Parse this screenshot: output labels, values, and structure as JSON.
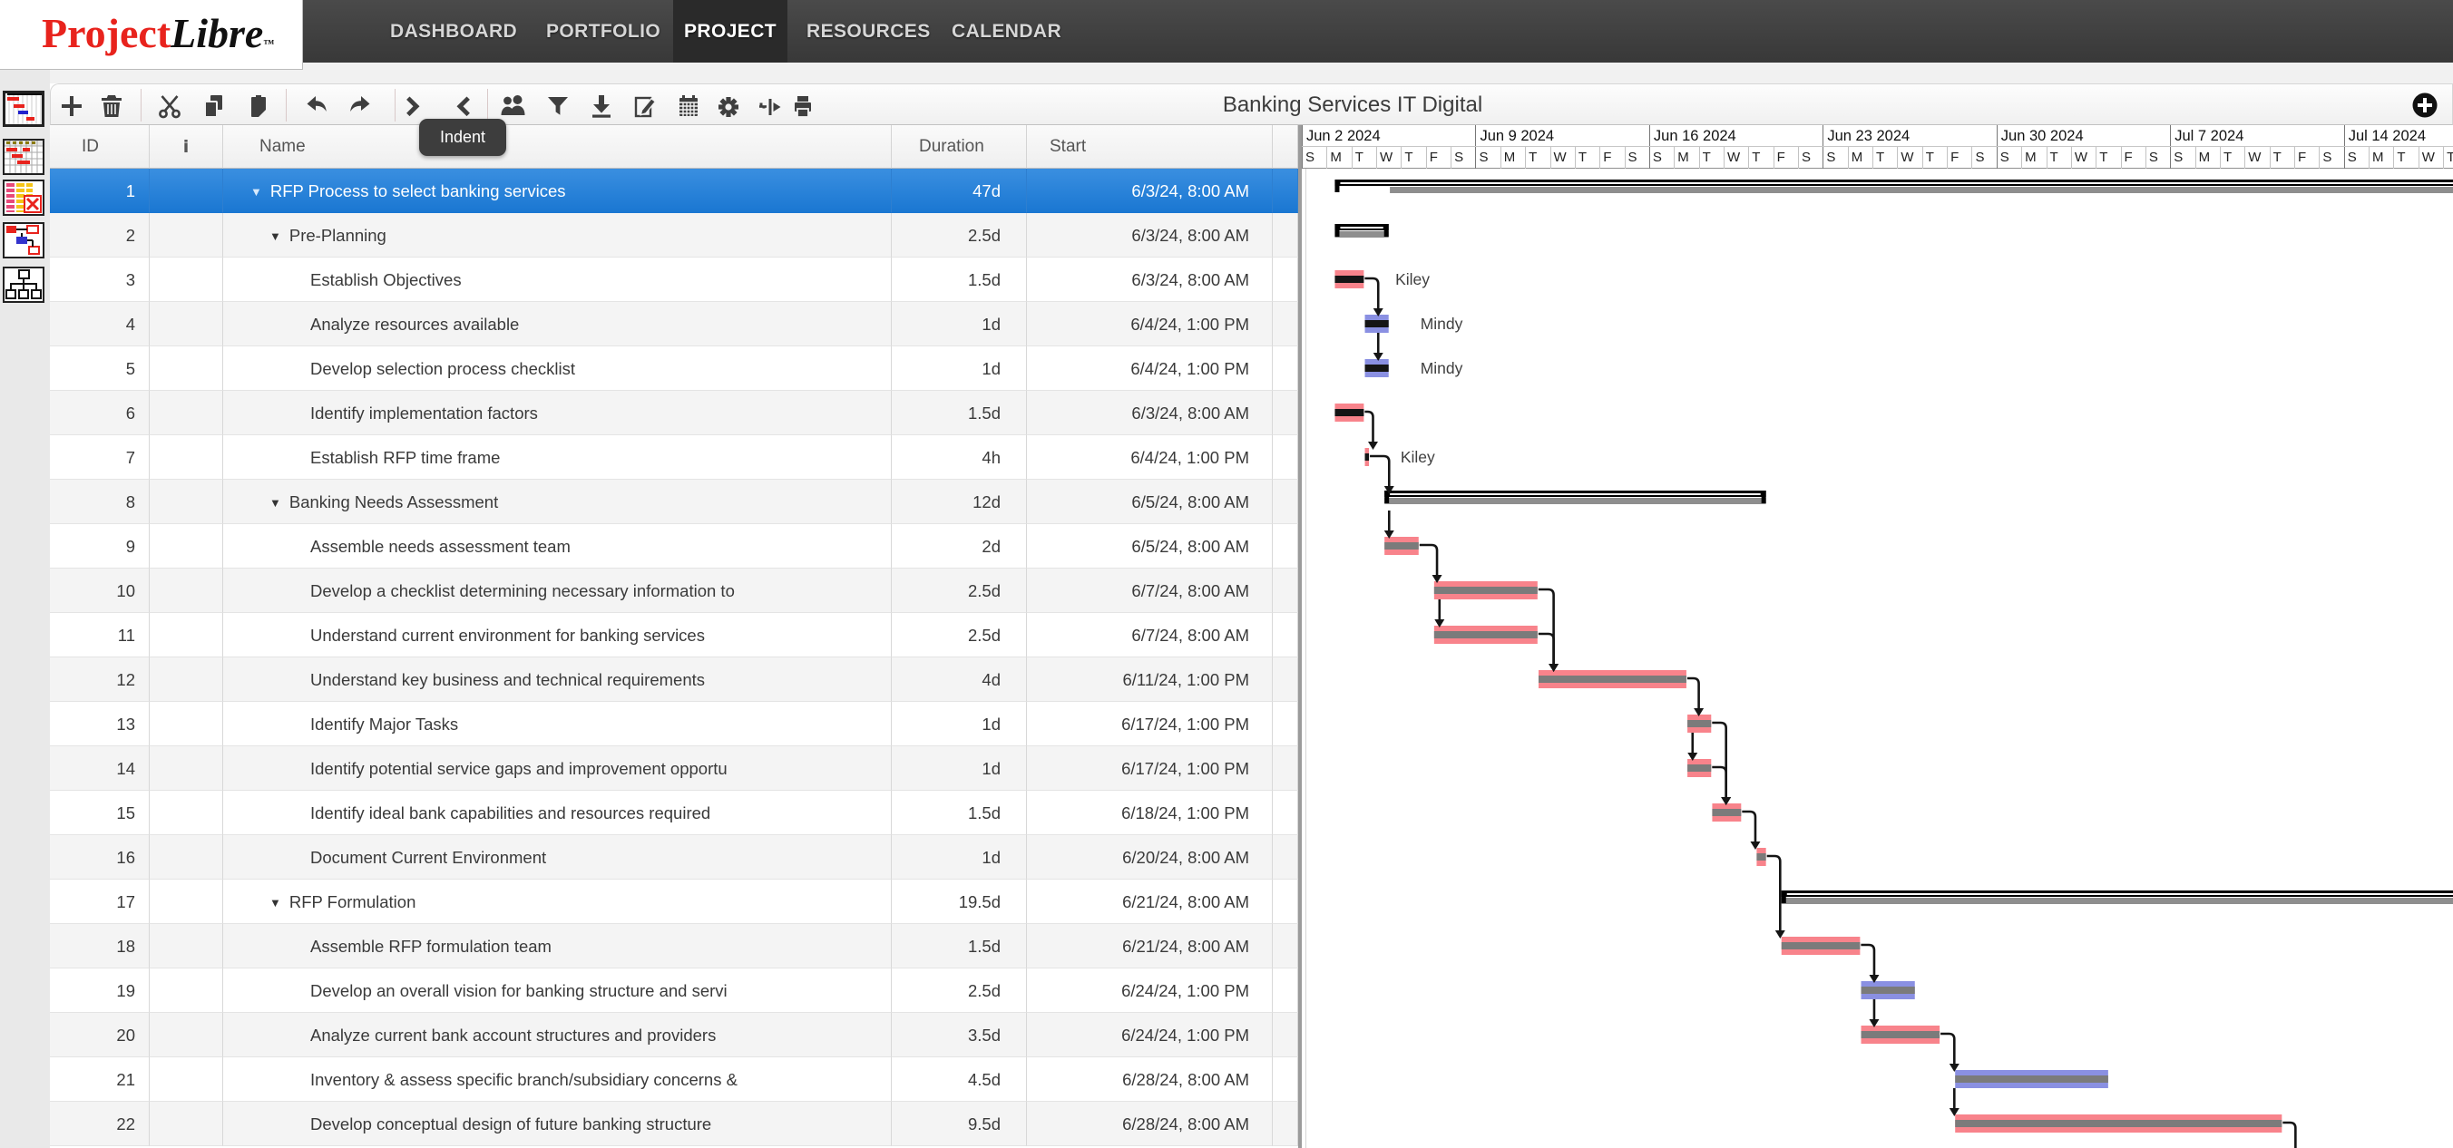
{
  "app": {
    "logo": {
      "part1": "Project",
      "part2": "Libre",
      "tm": "TM"
    }
  },
  "menu": {
    "items": [
      {
        "label": "DASHBOARD",
        "active": false
      },
      {
        "label": "PORTFOLIO",
        "active": false
      },
      {
        "label": "PROJECT",
        "active": true
      },
      {
        "label": "RESOURCES",
        "active": false
      },
      {
        "label": "CALENDAR",
        "active": false
      }
    ]
  },
  "toolbar": {
    "title": "Banking Services IT Digital",
    "tooltip": "Indent",
    "icons": [
      "add-task",
      "delete",
      "cut",
      "copy",
      "paste",
      "undo",
      "redo",
      "indent",
      "outdent",
      "assign-resources",
      "filter",
      "save-baseline",
      "edit",
      "calendar",
      "settings",
      "zoom",
      "print"
    ],
    "right_icon": "add-circle"
  },
  "sidebar": {
    "views": [
      "gantt",
      "tracking-gantt",
      "task-usage",
      "network-diagram",
      "wbs"
    ]
  },
  "table": {
    "columns": [
      {
        "key": "id",
        "label": "ID"
      },
      {
        "key": "info",
        "label": "i"
      },
      {
        "key": "name",
        "label": "Name"
      },
      {
        "key": "duration",
        "label": "Duration"
      },
      {
        "key": "start",
        "label": "Start"
      },
      {
        "key": "stub",
        "label": ""
      }
    ],
    "rows": [
      {
        "id": 1,
        "level": 1,
        "caret": true,
        "selected": true,
        "name": "RFP Process to select banking services",
        "duration": "47d",
        "start": "6/3/24, 8:00 AM"
      },
      {
        "id": 2,
        "level": 2,
        "caret": true,
        "selected": false,
        "name": "Pre-Planning",
        "duration": "2.5d",
        "start": "6/3/24, 8:00 AM"
      },
      {
        "id": 3,
        "level": 3,
        "caret": false,
        "selected": false,
        "name": "Establish Objectives",
        "duration": "1.5d",
        "start": "6/3/24, 8:00 AM"
      },
      {
        "id": 4,
        "level": 3,
        "caret": false,
        "selected": false,
        "name": "Analyze resources available",
        "duration": "1d",
        "start": "6/4/24, 1:00 PM"
      },
      {
        "id": 5,
        "level": 3,
        "caret": false,
        "selected": false,
        "name": "Develop selection process checklist",
        "duration": "1d",
        "start": "6/4/24, 1:00 PM"
      },
      {
        "id": 6,
        "level": 3,
        "caret": false,
        "selected": false,
        "name": "Identify implementation factors",
        "duration": "1.5d",
        "start": "6/3/24, 8:00 AM"
      },
      {
        "id": 7,
        "level": 3,
        "caret": false,
        "selected": false,
        "name": "Establish RFP time frame",
        "duration": "4h",
        "start": "6/4/24, 1:00 PM"
      },
      {
        "id": 8,
        "level": 2,
        "caret": true,
        "selected": false,
        "name": "Banking Needs Assessment",
        "duration": "12d",
        "start": "6/5/24, 8:00 AM"
      },
      {
        "id": 9,
        "level": 3,
        "caret": false,
        "selected": false,
        "name": "Assemble needs assessment team",
        "duration": "2d",
        "start": "6/5/24, 8:00 AM"
      },
      {
        "id": 10,
        "level": 3,
        "caret": false,
        "selected": false,
        "name": "Develop a checklist determining necessary information to",
        "duration": "2.5d",
        "start": "6/7/24, 8:00 AM"
      },
      {
        "id": 11,
        "level": 3,
        "caret": false,
        "selected": false,
        "name": "Understand current environment for banking services",
        "duration": "2.5d",
        "start": "6/7/24, 8:00 AM"
      },
      {
        "id": 12,
        "level": 3,
        "caret": false,
        "selected": false,
        "name": "Understand key business and technical requirements",
        "duration": "4d",
        "start": "6/11/24, 1:00 PM"
      },
      {
        "id": 13,
        "level": 3,
        "caret": false,
        "selected": false,
        "name": "Identify Major Tasks",
        "duration": "1d",
        "start": "6/17/24, 1:00 PM"
      },
      {
        "id": 14,
        "level": 3,
        "caret": false,
        "selected": false,
        "name": "Identify potential service gaps and improvement opportu",
        "duration": "1d",
        "start": "6/17/24, 1:00 PM"
      },
      {
        "id": 15,
        "level": 3,
        "caret": false,
        "selected": false,
        "name": "Identify ideal bank capabilities and resources required",
        "duration": "1.5d",
        "start": "6/18/24, 1:00 PM"
      },
      {
        "id": 16,
        "level": 3,
        "caret": false,
        "selected": false,
        "name": "Document Current Environment",
        "duration": "1d",
        "start": "6/20/24, 8:00 AM"
      },
      {
        "id": 17,
        "level": 2,
        "caret": true,
        "selected": false,
        "name": "RFP Formulation",
        "duration": "19.5d",
        "start": "6/21/24, 8:00 AM"
      },
      {
        "id": 18,
        "level": 3,
        "caret": false,
        "selected": false,
        "name": "Assemble RFP formulation team",
        "duration": "1.5d",
        "start": "6/21/24, 8:00 AM"
      },
      {
        "id": 19,
        "level": 3,
        "caret": false,
        "selected": false,
        "name": "Develop an overall vision for banking structure and servi",
        "duration": "2.5d",
        "start": "6/24/24, 1:00 PM"
      },
      {
        "id": 20,
        "level": 3,
        "caret": false,
        "selected": false,
        "name": "Analyze current bank account structures and providers",
        "duration": "3.5d",
        "start": "6/24/24, 1:00 PM"
      },
      {
        "id": 21,
        "level": 3,
        "caret": false,
        "selected": false,
        "name": "Inventory & assess specific branch/subsidiary concerns &",
        "duration": "4.5d",
        "start": "6/28/24, 8:00 AM"
      },
      {
        "id": 22,
        "level": 3,
        "caret": false,
        "selected": false,
        "name": "Develop conceptual design of future banking structure",
        "duration": "9.5d",
        "start": "6/28/24, 8:00 AM"
      }
    ]
  },
  "timeline": {
    "weeks": [
      "Jun 2 2024",
      "Jun 9 2024",
      "Jun 16 2024",
      "Jun 23 2024",
      "Jun 30 2024",
      "Jul 7 2024",
      "Jul 14 2024"
    ],
    "day_letters": [
      "S",
      "M",
      "T",
      "W",
      "T",
      "F",
      "S"
    ],
    "visible_days": 47
  },
  "gantt": {
    "colors": {
      "task_red": "#f8838b",
      "task_blue": "#8a90e2",
      "stripe_done": "#151515",
      "stripe": "#7b7b7b",
      "summary": "#000000",
      "summary_gray": "#8e8e8e",
      "link": "#151515",
      "label_text": "#3f3f3f"
    },
    "bars": [
      {
        "row": 1,
        "type": "summary",
        "start": 1.333,
        "end": 48,
        "gray_start": 3.55
      },
      {
        "row": 2,
        "type": "summary",
        "start": 1.333,
        "end": 3.5
      },
      {
        "row": 3,
        "type": "task",
        "color": "task_red",
        "stripe": "stripe_done",
        "start": 1.333,
        "end": 2.5,
        "label": "Kiley",
        "label_x": 3.77
      },
      {
        "row": 4,
        "type": "task",
        "color": "task_blue",
        "stripe": "stripe_done",
        "start": 2.542,
        "end": 3.5,
        "label": "Mindy",
        "label_x": 4.78
      },
      {
        "row": 5,
        "type": "task",
        "color": "task_blue",
        "stripe": "stripe_done",
        "start": 2.542,
        "end": 3.5,
        "label": "Mindy",
        "label_x": 4.78
      },
      {
        "row": 6,
        "type": "task",
        "color": "task_red",
        "stripe": "stripe_done",
        "start": 1.333,
        "end": 2.5
      },
      {
        "row": 7,
        "type": "task",
        "color": "task_red",
        "stripe": "stripe_done",
        "start": 2.542,
        "end": 2.708,
        "label": "Kiley",
        "label_x": 3.98
      },
      {
        "row": 8,
        "type": "summary",
        "start": 3.333,
        "end": 18.708
      },
      {
        "row": 9,
        "type": "task",
        "color": "task_red",
        "stripe": "stripe",
        "start": 3.333,
        "end": 4.708
      },
      {
        "row": 10,
        "type": "task",
        "color": "task_red",
        "stripe": "stripe",
        "start": 5.333,
        "end": 9.5
      },
      {
        "row": 11,
        "type": "task",
        "color": "task_red",
        "stripe": "stripe",
        "start": 5.333,
        "end": 9.5
      },
      {
        "row": 12,
        "type": "task",
        "color": "task_red",
        "stripe": "stripe",
        "start": 9.542,
        "end": 15.5
      },
      {
        "row": 13,
        "type": "task",
        "color": "task_red",
        "stripe": "stripe",
        "start": 15.542,
        "end": 16.5
      },
      {
        "row": 14,
        "type": "task",
        "color": "task_red",
        "stripe": "stripe",
        "start": 15.542,
        "end": 16.5
      },
      {
        "row": 15,
        "type": "task",
        "color": "task_red",
        "stripe": "stripe",
        "start": 16.542,
        "end": 17.708
      },
      {
        "row": 16,
        "type": "task",
        "color": "task_red",
        "stripe": "stripe",
        "start": 18.333,
        "end": 18.708
      },
      {
        "row": 17,
        "type": "summary",
        "start": 19.333,
        "end": 48
      },
      {
        "row": 18,
        "type": "task",
        "color": "task_red",
        "stripe": "stripe",
        "start": 19.333,
        "end": 22.5
      },
      {
        "row": 19,
        "type": "task",
        "color": "task_blue",
        "stripe": "stripe",
        "start": 22.542,
        "end": 24.708
      },
      {
        "row": 20,
        "type": "task",
        "color": "task_red",
        "stripe": "stripe",
        "start": 22.542,
        "end": 25.708
      },
      {
        "row": 21,
        "type": "task",
        "color": "task_blue",
        "stripe": "stripe",
        "start": 26.333,
        "end": 32.5
      },
      {
        "row": 22,
        "type": "task",
        "color": "task_red",
        "stripe": "stripe",
        "start": 26.333,
        "end": 39.5
      }
    ],
    "links": [
      {
        "from": 3,
        "to": 4,
        "kind": "elbow",
        "end": 2.5,
        "land": 3.08
      },
      {
        "from": 4,
        "to": 5,
        "kind": "vert",
        "x": 3.08
      },
      {
        "from": 6,
        "to": 7,
        "kind": "elbow",
        "end": 2.5,
        "land": 2.87
      },
      {
        "from": 7,
        "to": 8,
        "kind": "elbow",
        "end": 2.708,
        "land": 3.52
      },
      {
        "from": 8,
        "to": 9,
        "kind": "vert",
        "x": 3.52
      },
      {
        "from": 9,
        "to": 10,
        "kind": "elbow",
        "end": 4.708,
        "land": 5.45
      },
      {
        "from": 10,
        "to": 11,
        "kind": "vert",
        "x": 5.55
      },
      {
        "from": 10,
        "to": 12,
        "kind": "elbow",
        "end": 9.5,
        "land": 10.15
      },
      {
        "from": 11,
        "to": 12,
        "kind": "elbow",
        "end": 9.5,
        "land": 10.15
      },
      {
        "from": 12,
        "to": 13,
        "kind": "elbow",
        "end": 15.5,
        "land": 16.0
      },
      {
        "from": 13,
        "to": 14,
        "kind": "vert",
        "x": 15.75
      },
      {
        "from": 13,
        "to": 15,
        "kind": "elbow",
        "end": 16.5,
        "land": 17.1
      },
      {
        "from": 14,
        "to": 15,
        "kind": "elbow",
        "end": 16.5,
        "land": 17.1
      },
      {
        "from": 15,
        "to": 16,
        "kind": "elbow",
        "end": 17.708,
        "land": 18.28
      },
      {
        "from": 16,
        "to": 18,
        "kind": "elbow",
        "end": 18.708,
        "land": 19.28
      },
      {
        "from": 18,
        "to": 19,
        "kind": "elbow",
        "end": 22.5,
        "land": 23.07
      },
      {
        "from": 19,
        "to": 20,
        "kind": "vert",
        "x": 23.07
      },
      {
        "from": 20,
        "to": 21,
        "kind": "elbow",
        "end": 25.708,
        "land": 26.3
      },
      {
        "from": 21,
        "to": 22,
        "kind": "vert",
        "x": 26.3
      },
      {
        "from": 22,
        "to": 23,
        "kind": "elbow",
        "end": 39.5,
        "land": 40.05
      }
    ]
  }
}
